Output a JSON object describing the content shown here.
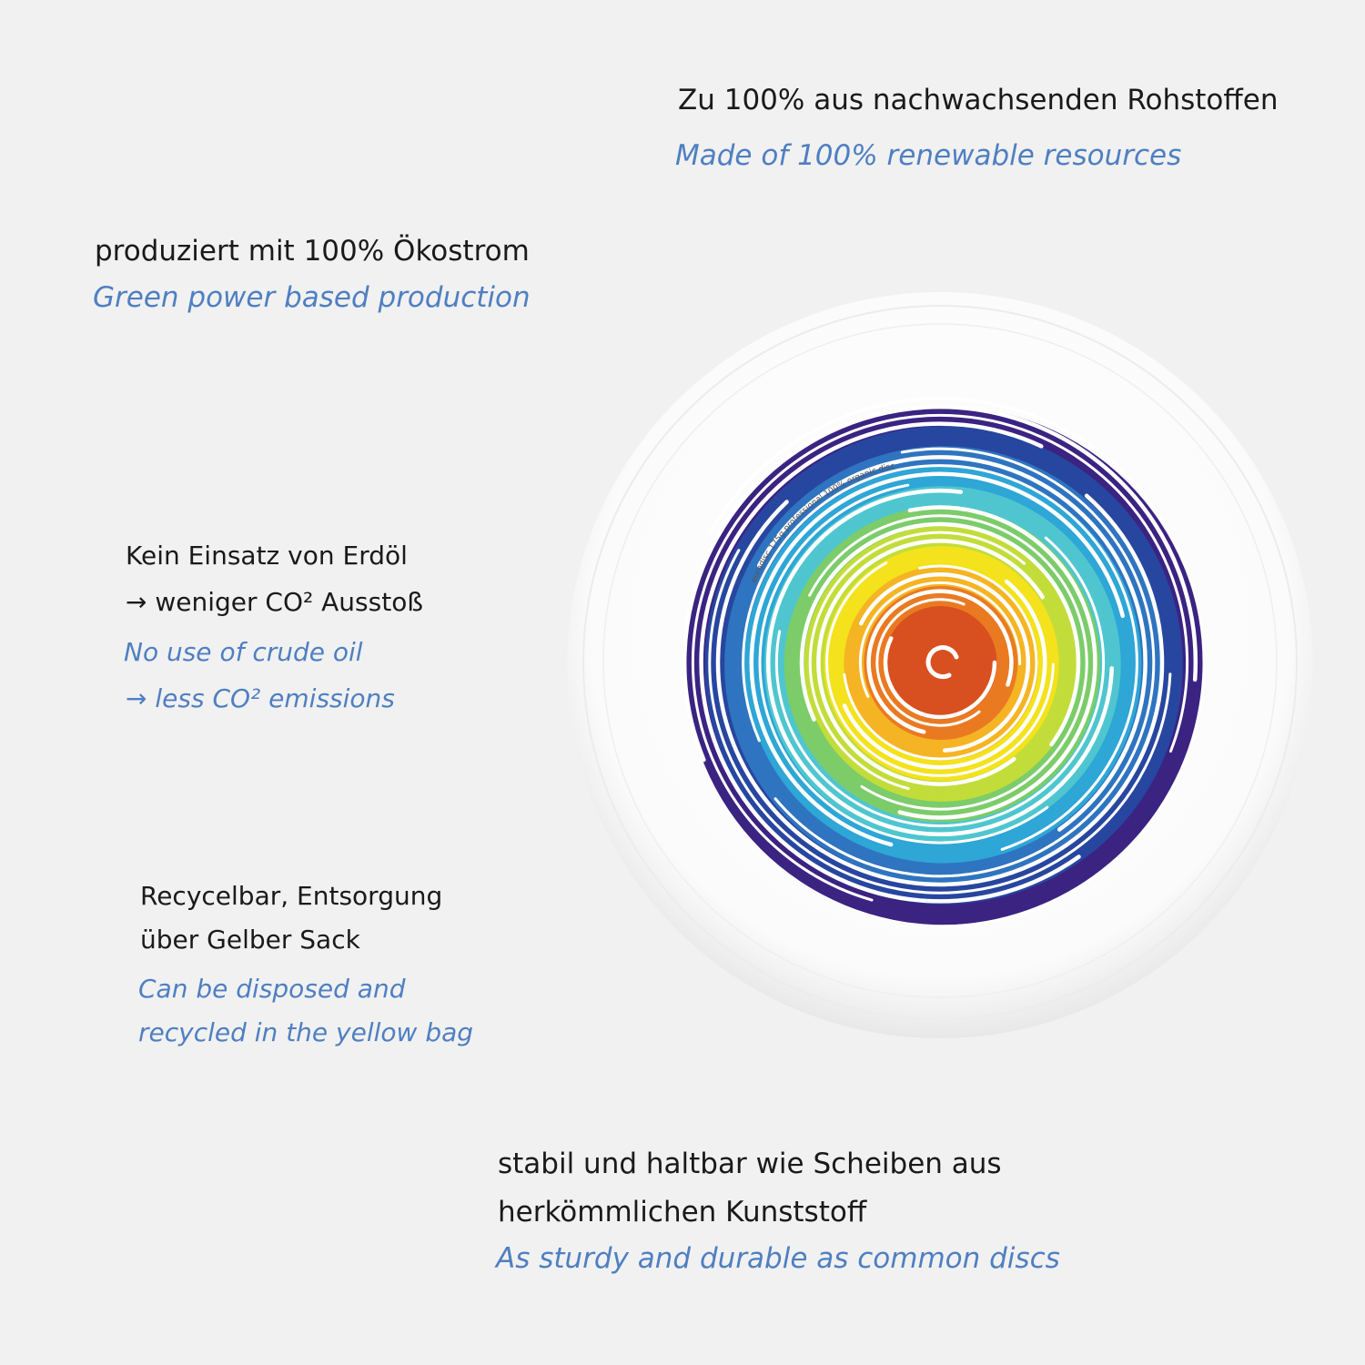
{
  "features": [
    {
      "id": "renewable",
      "de": "Zu 100% aus nachwachsenden Rohstoffen",
      "en": "Made of 100% renewable resources"
    },
    {
      "id": "green-power",
      "de": "produziert mit 100% Ökostrom",
      "en": "Green power based production"
    },
    {
      "id": "no-oil",
      "de_lines": [
        "Kein Einsatz von Erdöl",
        "→ weniger CO² Ausstoß"
      ],
      "en_lines": [
        "No use of crude oil",
        "→ less CO² emissions"
      ]
    },
    {
      "id": "recycle",
      "de_lines": [
        "Recycelbar, Entsorgung",
        "über Gelber Sack"
      ],
      "en_lines": [
        "Can be disposed and",
        "recycled in the yellow bag"
      ]
    },
    {
      "id": "sturdy",
      "de_lines": [
        "stabil und haltbar wie Scheiben aus",
        "herkömmlichen Kunststoff"
      ],
      "en": "As sturdy and durable as common discs"
    }
  ],
  "disc": {
    "label": "eurodisc 175g professional 100% organic disc",
    "colors": [
      "#3b2382",
      "#27469f",
      "#2f74c0",
      "#2ea6d6",
      "#4fc6cf",
      "#7ccc6a",
      "#c2dd3a",
      "#f3e21c",
      "#f5b423",
      "#ea7a22",
      "#d8501f"
    ]
  }
}
